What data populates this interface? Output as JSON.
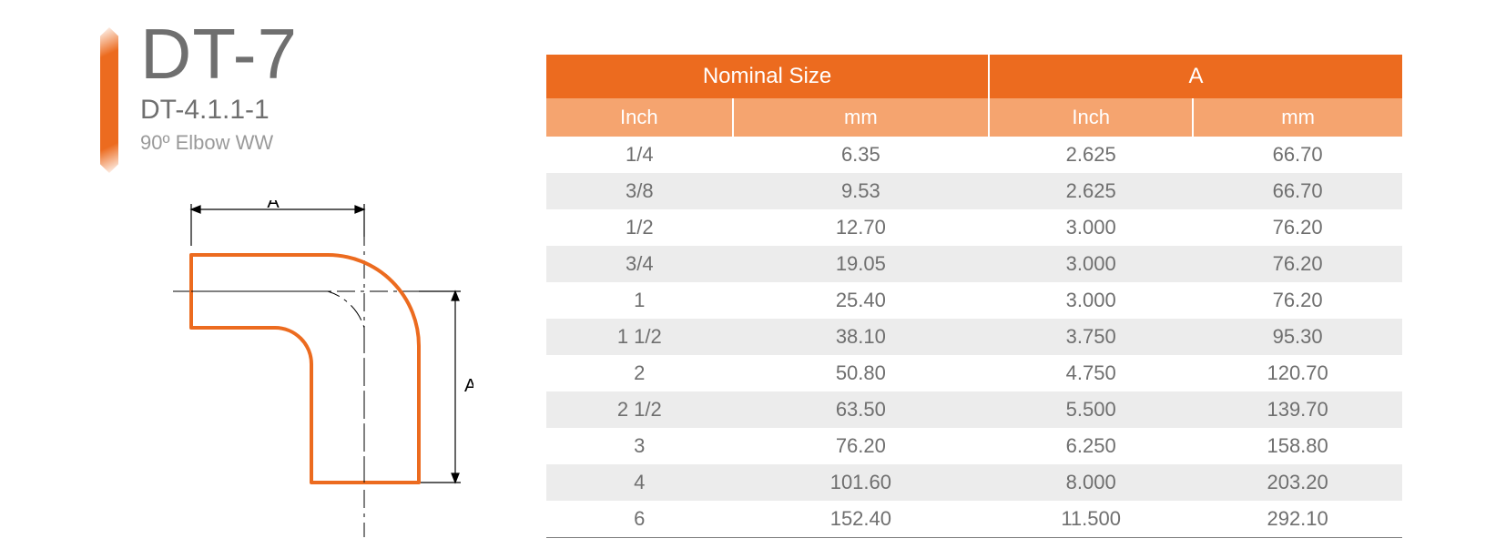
{
  "product": {
    "title": "DT-7",
    "code": "DT-4.1.1-1",
    "description": "90º Elbow WW"
  },
  "colors": {
    "accent": "#ec6b1f",
    "header_primary": "#ec6b1f",
    "header_secondary": "#f5a46f",
    "row_alt": "#ececec",
    "text_primary": "#6f6f6f",
    "text_muted": "#9a9a9a",
    "table_border": "#7a7a7a",
    "diagram_stroke": "#ec6b1f",
    "diagram_dim": "#000000"
  },
  "diagram": {
    "label_top": "A",
    "label_right": "A",
    "elbow_stroke_width": 4,
    "dim_stroke_width": 1.2
  },
  "table": {
    "group_headers": [
      "Nominal Size",
      "A"
    ],
    "sub_headers": [
      "Inch",
      "mm",
      "Inch",
      "mm"
    ],
    "column_widths_pct": [
      25,
      25,
      25,
      25
    ],
    "rows": [
      [
        "1/4",
        "6.35",
        "2.625",
        "66.70"
      ],
      [
        "3/8",
        "9.53",
        "2.625",
        "66.70"
      ],
      [
        "1/2",
        "12.70",
        "3.000",
        "76.20"
      ],
      [
        "3/4",
        "19.05",
        "3.000",
        "76.20"
      ],
      [
        "1",
        "25.40",
        "3.000",
        "76.20"
      ],
      [
        "1 1/2",
        "38.10",
        "3.750",
        "95.30"
      ],
      [
        "2",
        "50.80",
        "4.750",
        "120.70"
      ],
      [
        "2 1/2",
        "63.50",
        "5.500",
        "139.70"
      ],
      [
        "3",
        "76.20",
        "6.250",
        "158.80"
      ],
      [
        "4",
        "101.60",
        "8.000",
        "203.20"
      ],
      [
        "6",
        "152.40",
        "11.500",
        "292.10"
      ]
    ]
  }
}
